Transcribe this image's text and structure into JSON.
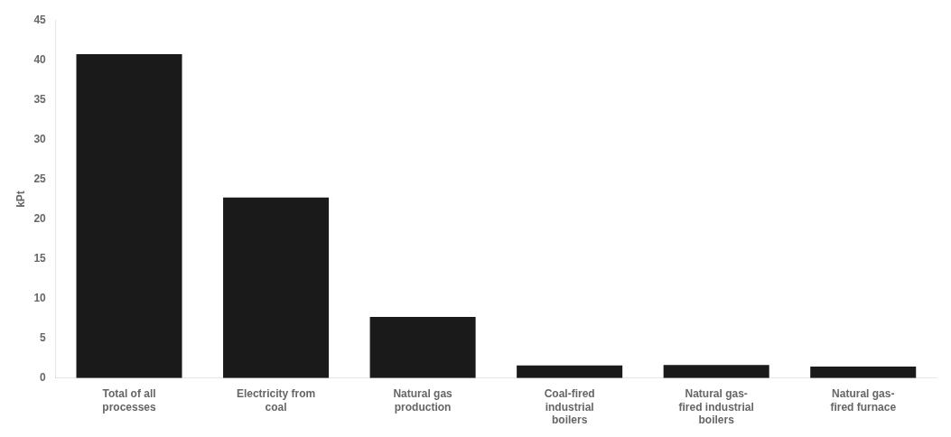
{
  "chart_data": {
    "type": "bar",
    "categories": [
      "Total of all\nprocesses",
      "Electricity from\ncoal",
      "Natural gas\nproduction",
      "Coal-fired\nindustrial\nboilers",
      "Natural gas-\nfired industrial\nboilers",
      "Natural gas-\nfired furnace"
    ],
    "values": [
      40.7,
      22.7,
      7.7,
      1.6,
      1.65,
      1.45
    ],
    "color": "#1a1a1a",
    "ylabel": "kPt",
    "ylim": [
      0,
      45
    ],
    "yticks": [
      0,
      5,
      10,
      15,
      20,
      25,
      30,
      35,
      40,
      45
    ],
    "grid": false
  }
}
